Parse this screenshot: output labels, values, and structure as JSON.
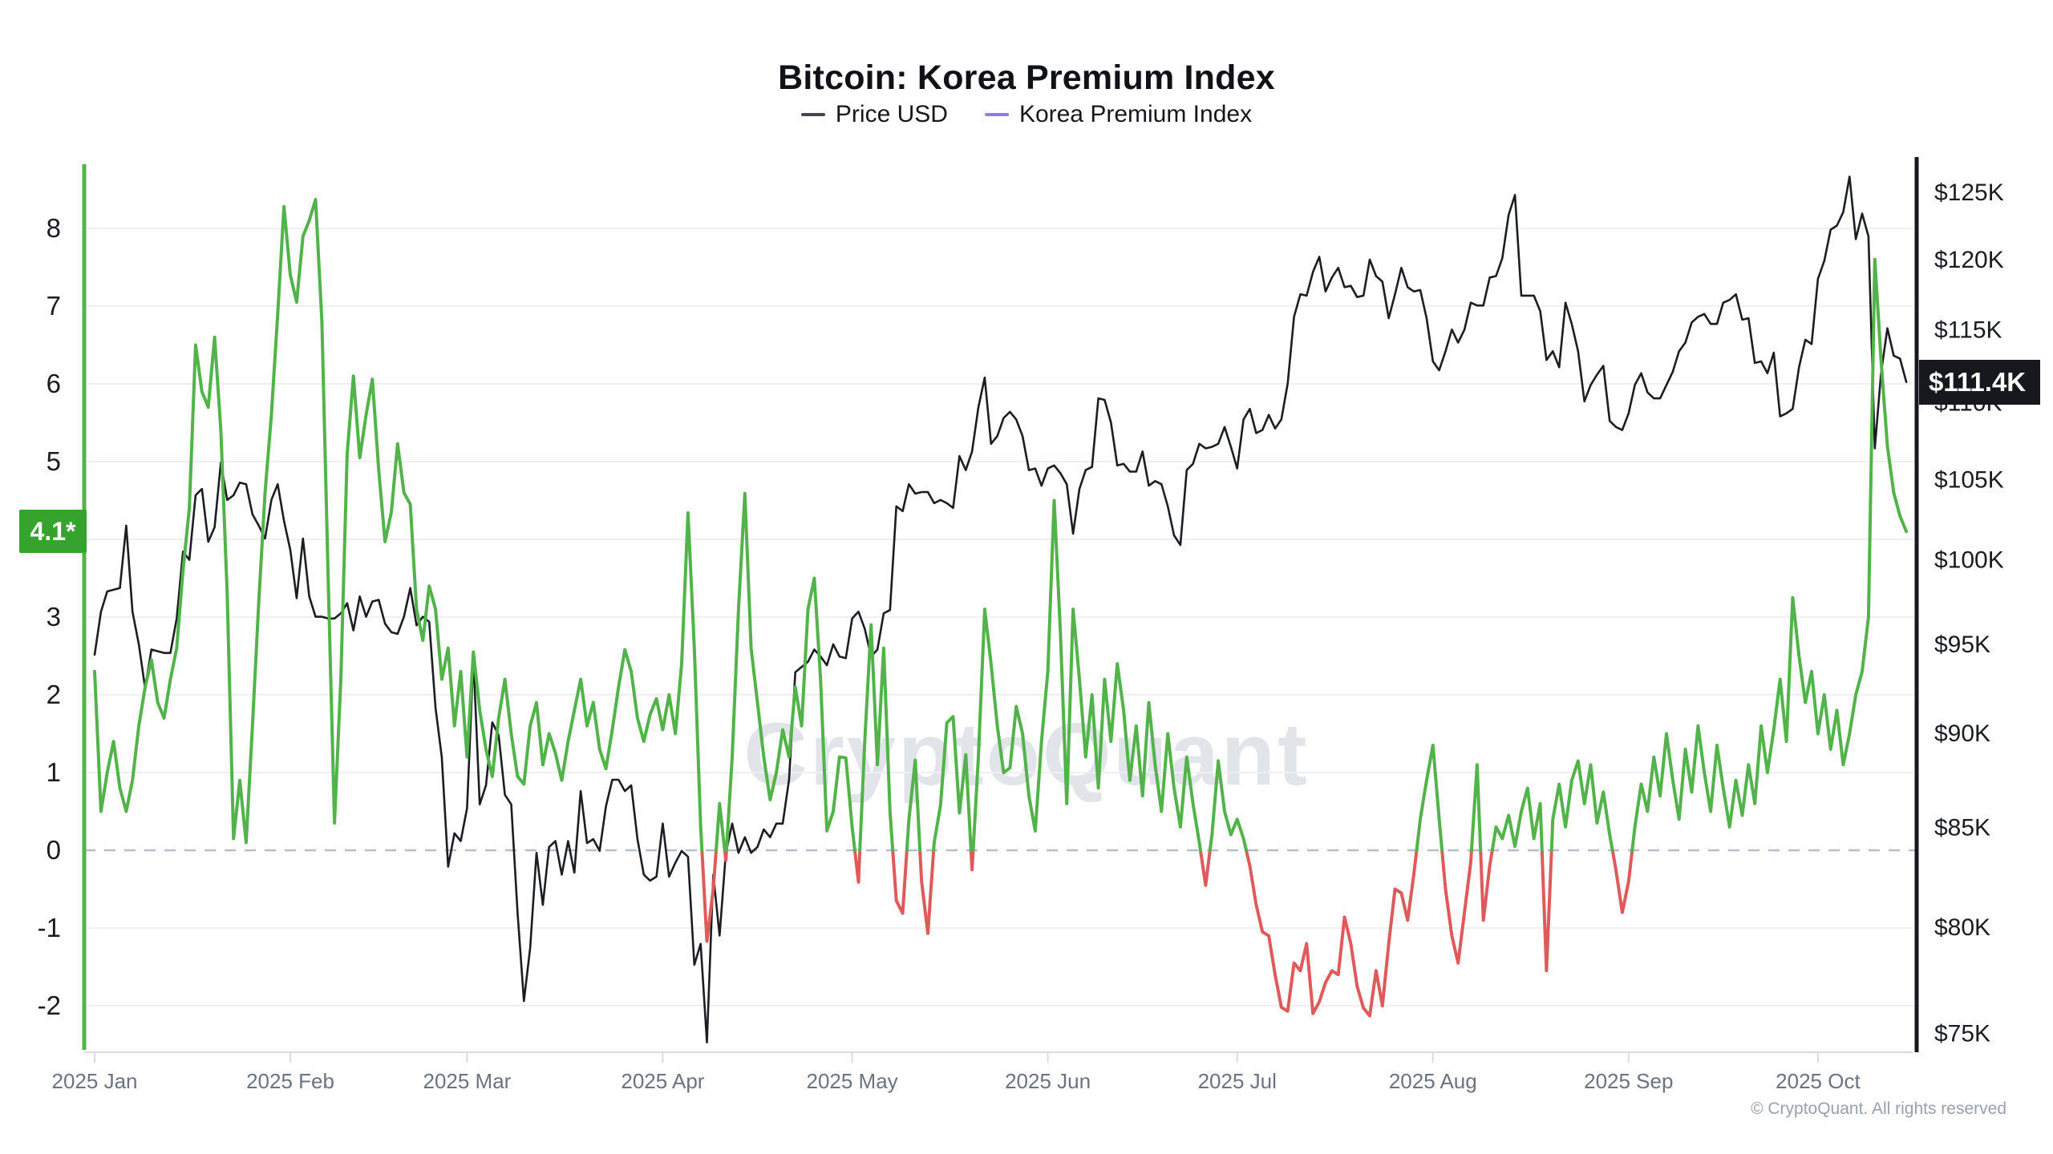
{
  "header": {
    "title": "Bitcoin: Korea Premium Index"
  },
  "legend": [
    {
      "label": "Price USD",
      "color": "#44474d"
    },
    {
      "label": "Korea Premium Index",
      "color": "#8b7cf2"
    }
  ],
  "badges": {
    "premium_last_label": "4.1*",
    "premium_last_value": 4.1,
    "premium_badge_color": "#35a32e",
    "price_last_label": "$111.4K",
    "price_last_value": 111.4,
    "price_badge_color": "#16181d"
  },
  "watermark": {
    "text": "CryptoQuant"
  },
  "footer": {
    "copyright": "© CryptoQuant. All rights reserved"
  },
  "chart_data": {
    "type": "line",
    "title": "Bitcoin: Korea Premium Index",
    "grid": "horizontal",
    "legend_position": "top",
    "x_start": "2025-01-01",
    "x_step": "1 day",
    "x_ticks": [
      {
        "label": "2025 Jan",
        "day": 0
      },
      {
        "label": "2025 Feb",
        "day": 31
      },
      {
        "label": "2025 Mar",
        "day": 59
      },
      {
        "label": "2025 Apr",
        "day": 90
      },
      {
        "label": "2025 May",
        "day": 120
      },
      {
        "label": "2025 Jun",
        "day": 151
      },
      {
        "label": "2025 Jul",
        "day": 181
      },
      {
        "label": "2025 Aug",
        "day": 212
      },
      {
        "label": "2025 Sep",
        "day": 243
      },
      {
        "label": "2025 Oct",
        "day": 273
      }
    ],
    "y_left": {
      "name": "Korea Premium Index",
      "ticks": [
        8,
        7,
        6,
        5,
        4,
        3,
        2,
        1,
        0,
        -1,
        -2
      ],
      "zero_line": "dashed",
      "axis_color": "#53b34b",
      "last_value": 4.1
    },
    "y_right": {
      "name": "Price USD",
      "scale": "log",
      "ticks": [
        {
          "label": "$125K",
          "value": 125
        },
        {
          "label": "$120K",
          "value": 120
        },
        {
          "label": "$115K",
          "value": 115
        },
        {
          "label": "$110K",
          "value": 110
        },
        {
          "label": "$105K",
          "value": 105
        },
        {
          "label": "$100K",
          "value": 100
        },
        {
          "label": "$95K",
          "value": 95
        },
        {
          "label": "$90K",
          "value": 90
        },
        {
          "label": "$85K",
          "value": 85
        },
        {
          "label": "$80K",
          "value": 80
        },
        {
          "label": "$75K",
          "value": 75
        }
      ],
      "axis_color": "#16181d",
      "last_value_label": "$111.4K"
    },
    "series": [
      {
        "name": "Price USD",
        "axis": "right",
        "unit": "USD thousands",
        "color": "#1b1d22",
        "values": [
          94.4,
          96.9,
          98.1,
          98.2,
          98.3,
          102.1,
          96.9,
          95.0,
          92.5,
          94.7,
          94.6,
          94.5,
          94.5,
          96.5,
          100.5,
          100.0,
          104.0,
          104.4,
          101.1,
          102.0,
          106.1,
          103.7,
          104.0,
          104.8,
          104.7,
          102.8,
          102.1,
          101.3,
          103.7,
          104.7,
          102.4,
          100.6,
          97.7,
          101.3,
          97.8,
          96.6,
          96.6,
          96.5,
          96.5,
          96.8,
          97.4,
          95.8,
          97.8,
          96.6,
          97.5,
          97.6,
          96.2,
          95.7,
          95.6,
          96.6,
          98.3,
          96.1,
          96.6,
          96.3,
          91.4,
          88.7,
          83.0,
          84.7,
          84.3,
          86.0,
          94.2,
          86.2,
          87.2,
          90.6,
          89.9,
          86.7,
          86.2,
          80.7,
          76.5,
          79.0,
          83.7,
          81.1,
          84.0,
          84.3,
          82.6,
          84.3,
          82.7,
          86.9,
          84.2,
          84.4,
          83.8,
          86.1,
          87.5,
          87.5,
          86.9,
          87.2,
          84.4,
          82.6,
          82.3,
          82.5,
          85.2,
          82.5,
          83.2,
          83.8,
          83.5,
          78.2,
          79.2,
          74.6,
          82.6,
          79.6,
          83.7,
          85.2,
          83.7,
          84.5,
          83.7,
          84.0,
          84.9,
          84.5,
          85.2,
          85.2,
          87.5,
          93.4,
          93.7,
          94.0,
          94.7,
          94.3,
          93.8,
          95.0,
          94.3,
          94.2,
          96.5,
          96.9,
          95.9,
          94.3,
          94.7,
          96.8,
          97.0,
          103.3,
          103.0,
          104.7,
          104.1,
          104.2,
          104.2,
          103.5,
          103.7,
          103.5,
          103.2,
          106.5,
          105.6,
          106.8,
          109.7,
          111.7,
          107.3,
          107.8,
          109.0,
          109.4,
          108.9,
          107.8,
          105.6,
          105.7,
          104.6,
          105.7,
          105.9,
          105.4,
          104.7,
          101.6,
          104.4,
          105.6,
          105.8,
          110.3,
          110.2,
          108.7,
          105.9,
          106.0,
          105.5,
          105.5,
          106.8,
          104.6,
          104.9,
          104.7,
          103.3,
          101.5,
          100.9,
          105.6,
          106.0,
          107.3,
          107.0,
          107.1,
          107.3,
          108.4,
          107.1,
          105.7,
          108.9,
          109.6,
          108.0,
          108.2,
          109.2,
          108.3,
          108.9,
          111.3,
          115.9,
          117.5,
          117.4,
          119.1,
          120.2,
          117.7,
          118.7,
          119.4,
          118.0,
          118.1,
          117.3,
          117.4,
          120.0,
          118.8,
          118.4,
          115.8,
          117.5,
          119.4,
          118.0,
          117.7,
          117.8,
          115.8,
          112.8,
          112.2,
          113.5,
          115.0,
          114.1,
          115.0,
          116.9,
          116.7,
          116.7,
          118.7,
          118.8,
          120.1,
          123.3,
          124.8,
          117.4,
          117.4,
          117.4,
          116.3,
          112.9,
          113.5,
          112.4,
          116.9,
          115.4,
          113.5,
          110.1,
          111.2,
          111.9,
          112.5,
          108.8,
          108.4,
          108.2,
          109.3,
          111.2,
          112.0,
          110.7,
          110.3,
          110.3,
          111.2,
          112.1,
          113.5,
          114.1,
          115.5,
          115.9,
          116.1,
          115.4,
          115.4,
          116.9,
          117.1,
          117.5,
          115.7,
          115.8,
          112.7,
          112.8,
          112.0,
          113.4,
          109.1,
          109.3,
          109.6,
          112.4,
          114.3,
          114.0,
          118.6,
          119.9,
          122.2,
          122.5,
          123.5,
          126.2,
          121.5,
          123.4,
          121.7,
          107.0,
          112.0,
          115.1,
          113.2,
          113.0,
          111.4
        ]
      },
      {
        "name": "Korea Premium Index",
        "axis": "left",
        "unit": "%",
        "color_positive": "#53b34b",
        "color_negative": "#df5b5b",
        "values": [
          2.3,
          0.5,
          1.0,
          1.4,
          0.8,
          0.5,
          0.9,
          1.6,
          2.1,
          2.45,
          1.9,
          1.7,
          2.2,
          2.6,
          3.6,
          4.4,
          6.5,
          5.9,
          5.7,
          6.6,
          5.4,
          3.3,
          0.15,
          0.9,
          0.1,
          1.6,
          3.2,
          4.6,
          5.6,
          6.9,
          8.28,
          7.4,
          7.05,
          7.9,
          8.1,
          8.37,
          6.8,
          3.5,
          0.35,
          2.2,
          5.1,
          6.1,
          5.05,
          5.6,
          6.06,
          4.9,
          3.97,
          4.35,
          5.23,
          4.6,
          4.45,
          3.1,
          2.7,
          3.4,
          3.1,
          2.2,
          2.6,
          1.6,
          2.3,
          1.2,
          2.55,
          1.8,
          1.3,
          0.95,
          1.7,
          2.2,
          1.5,
          0.95,
          0.85,
          1.6,
          1.9,
          1.1,
          1.5,
          1.25,
          0.9,
          1.4,
          1.8,
          2.2,
          1.6,
          1.9,
          1.3,
          1.05,
          1.55,
          2.1,
          2.58,
          2.3,
          1.7,
          1.4,
          1.75,
          1.95,
          1.55,
          2.0,
          1.5,
          2.4,
          4.34,
          2.6,
          0.3,
          -1.17,
          -0.5,
          0.6,
          -0.13,
          1.2,
          3.1,
          4.59,
          2.6,
          1.9,
          1.2,
          0.65,
          1.0,
          1.55,
          1.2,
          2.1,
          1.6,
          3.1,
          3.5,
          2.2,
          0.25,
          0.5,
          1.2,
          1.19,
          0.3,
          -0.41,
          1.4,
          2.9,
          1.1,
          2.6,
          0.5,
          -0.65,
          -0.81,
          0.4,
          1.16,
          -0.4,
          -1.07,
          0.1,
          0.58,
          1.64,
          1.72,
          0.48,
          1.23,
          -0.25,
          1.2,
          3.1,
          2.4,
          1.6,
          1.0,
          1.06,
          1.85,
          1.5,
          0.7,
          0.25,
          1.4,
          2.3,
          4.5,
          2.8,
          0.6,
          3.1,
          2.2,
          1.2,
          2.0,
          0.8,
          2.2,
          1.4,
          2.4,
          1.8,
          0.9,
          1.6,
          0.7,
          1.9,
          1.1,
          0.5,
          1.5,
          0.8,
          0.3,
          1.2,
          0.6,
          0.1,
          -0.45,
          0.2,
          1.15,
          0.5,
          0.2,
          0.4,
          0.15,
          -0.2,
          -0.7,
          -1.05,
          -1.1,
          -1.6,
          -2.02,
          -2.07,
          -1.45,
          -1.55,
          -1.2,
          -2.1,
          -1.95,
          -1.7,
          -1.55,
          -1.6,
          -0.86,
          -1.2,
          -1.75,
          -2.03,
          -2.13,
          -1.55,
          -2.0,
          -1.2,
          -0.5,
          -0.55,
          -0.9,
          -0.3,
          0.4,
          0.9,
          1.35,
          0.4,
          -0.5,
          -1.1,
          -1.45,
          -0.8,
          -0.15,
          1.1,
          -0.9,
          -0.2,
          0.3,
          0.15,
          0.45,
          0.05,
          0.5,
          0.8,
          0.15,
          0.6,
          -1.55,
          0.4,
          0.85,
          0.3,
          0.9,
          1.15,
          0.6,
          1.1,
          0.35,
          0.75,
          0.2,
          -0.25,
          -0.8,
          -0.4,
          0.3,
          0.85,
          0.5,
          1.2,
          0.7,
          1.5,
          0.9,
          0.4,
          1.3,
          0.75,
          1.6,
          1.0,
          0.5,
          1.35,
          0.8,
          0.3,
          0.9,
          0.45,
          1.1,
          0.6,
          1.6,
          1.0,
          1.55,
          2.2,
          1.4,
          3.25,
          2.5,
          1.9,
          2.3,
          1.5,
          2.0,
          1.3,
          1.8,
          1.1,
          1.5,
          2.0,
          2.3,
          3.0,
          7.6,
          6.3,
          5.2,
          4.6,
          4.3,
          4.1
        ]
      }
    ]
  }
}
